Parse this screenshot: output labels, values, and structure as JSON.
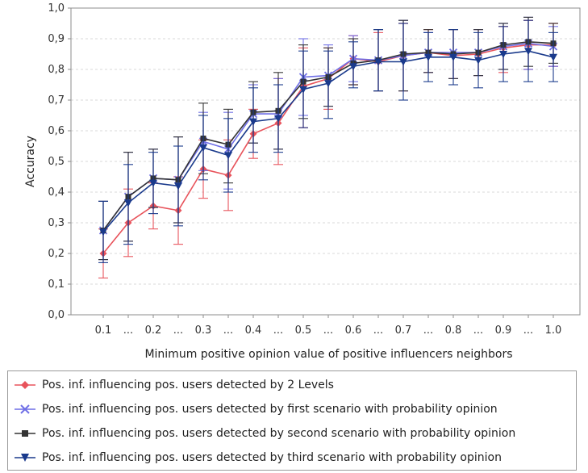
{
  "chart_data": {
    "type": "line",
    "title": "",
    "xlabel": "Minimum positive opinion value of positive influencers neighbors",
    "ylabel": "Accuracy",
    "categories": [
      "0.1",
      "...",
      "0.2",
      "...",
      "0.3",
      "...",
      "0.4",
      "...",
      "0.5",
      "...",
      "0.6",
      "...",
      "0.7",
      "...",
      "0.8",
      "...",
      "0.9",
      "...",
      "1.0"
    ],
    "ylim": [
      0.0,
      1.0
    ],
    "yticks": [
      "0,0",
      "0,1",
      "0,2",
      "0,3",
      "0,4",
      "0,5",
      "0,6",
      "0,7",
      "0,8",
      "0,9",
      "1,0"
    ],
    "grid": "horizontal dashed",
    "legend_position": "bottom",
    "series": [
      {
        "name": "Pos. inf. influencing pos. users detected by 2 Levels",
        "color": "#e8535b",
        "marker": "diamond",
        "values": [
          0.2,
          0.3,
          0.355,
          0.34,
          0.475,
          0.455,
          0.59,
          0.625,
          0.745,
          0.77,
          0.835,
          0.825,
          0.845,
          0.855,
          0.845,
          0.85,
          0.87,
          0.88,
          0.88
        ],
        "err_low": [
          0.12,
          0.19,
          0.28,
          0.23,
          0.38,
          0.34,
          0.51,
          0.49,
          0.61,
          0.67,
          0.75,
          0.73,
          0.73,
          0.79,
          0.77,
          0.78,
          0.79,
          0.8,
          0.81
        ],
        "err_high": [
          0.28,
          0.41,
          0.43,
          0.45,
          0.57,
          0.57,
          0.67,
          0.77,
          0.87,
          0.87,
          0.91,
          0.92,
          0.95,
          0.93,
          0.93,
          0.93,
          0.94,
          0.96,
          0.95
        ]
      },
      {
        "name": "Pos. inf. influencing pos. users detected by first scenario with probability opinion",
        "color": "#6f6fe6",
        "marker": "x",
        "values": [
          0.275,
          0.385,
          0.445,
          0.44,
          0.565,
          0.54,
          0.655,
          0.655,
          0.775,
          0.78,
          0.835,
          0.83,
          0.845,
          0.855,
          0.855,
          0.855,
          0.875,
          0.885,
          0.875
        ],
        "err_low": [
          0.18,
          0.24,
          0.35,
          0.3,
          0.47,
          0.41,
          0.56,
          0.54,
          0.65,
          0.68,
          0.76,
          0.73,
          0.73,
          0.79,
          0.77,
          0.78,
          0.8,
          0.8,
          0.81
        ],
        "err_high": [
          0.37,
          0.53,
          0.54,
          0.58,
          0.66,
          0.66,
          0.75,
          0.77,
          0.9,
          0.88,
          0.91,
          0.93,
          0.96,
          0.92,
          0.93,
          0.93,
          0.95,
          0.97,
          0.94
        ]
      },
      {
        "name": "Pos. inf. influencing pos. users detected by second scenario with probability opinion",
        "color": "#333333",
        "marker": "square",
        "values": [
          0.275,
          0.385,
          0.445,
          0.44,
          0.575,
          0.555,
          0.66,
          0.665,
          0.76,
          0.775,
          0.82,
          0.83,
          0.85,
          0.855,
          0.85,
          0.855,
          0.88,
          0.89,
          0.885
        ],
        "err_low": [
          0.18,
          0.24,
          0.35,
          0.3,
          0.46,
          0.43,
          0.56,
          0.54,
          0.64,
          0.68,
          0.75,
          0.73,
          0.73,
          0.79,
          0.77,
          0.78,
          0.8,
          0.81,
          0.82
        ],
        "err_high": [
          0.37,
          0.53,
          0.54,
          0.58,
          0.69,
          0.67,
          0.76,
          0.79,
          0.88,
          0.87,
          0.9,
          0.93,
          0.96,
          0.93,
          0.93,
          0.93,
          0.95,
          0.97,
          0.95
        ]
      },
      {
        "name": "Pos. inf. influencing pos. users detected by third scenario with probability opinion",
        "color": "#1a3a8c",
        "marker": "triangle-down",
        "values": [
          0.27,
          0.365,
          0.43,
          0.42,
          0.545,
          0.52,
          0.63,
          0.64,
          0.735,
          0.755,
          0.81,
          0.825,
          0.825,
          0.84,
          0.84,
          0.83,
          0.85,
          0.86,
          0.84
        ],
        "err_low": [
          0.17,
          0.23,
          0.33,
          0.29,
          0.44,
          0.4,
          0.53,
          0.53,
          0.61,
          0.64,
          0.74,
          0.73,
          0.7,
          0.76,
          0.75,
          0.74,
          0.76,
          0.76,
          0.76
        ],
        "err_high": [
          0.37,
          0.49,
          0.53,
          0.55,
          0.65,
          0.64,
          0.74,
          0.75,
          0.86,
          0.86,
          0.89,
          0.93,
          0.95,
          0.92,
          0.93,
          0.92,
          0.94,
          0.96,
          0.92
        ]
      }
    ]
  }
}
